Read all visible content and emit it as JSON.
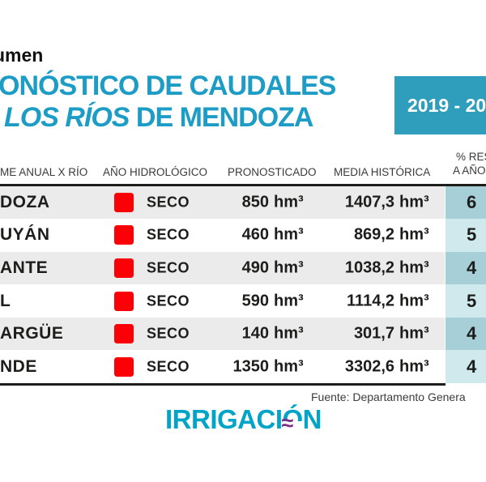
{
  "kicker": "umen",
  "title": {
    "line1": "ONÓSTICO DE CAUDALES",
    "line2_italic": "LOS RÍOS",
    "line2_rest": " DE MENDOZA",
    "color": "#1d9cc5"
  },
  "period_badge": {
    "label": "2019 - 20",
    "bg": "#2f9dbc"
  },
  "table": {
    "headers": {
      "col_river": "ME ANUAL X RÍO",
      "col_year": "AÑO HIDROLÓGICO",
      "col_forecast": "PRONOSTICADO",
      "col_historical": "MEDIA HISTÓRICA",
      "col_pct_line1": "% RES",
      "col_pct_line2": "A AÑO"
    },
    "unit": "hm³",
    "condition_swatch_color": "#fb0006",
    "row_alt_color": "#ebebeb",
    "pct_col_colors": {
      "dark": "#a7cfd8",
      "light": "#cfe9ed"
    },
    "rows": [
      {
        "name": "DOZA",
        "condition": "SECO",
        "forecast": "850",
        "historical": "1407,3",
        "pct": "6"
      },
      {
        "name": "UYÁN",
        "condition": "SECO",
        "forecast": "460",
        "historical": "869,2",
        "pct": "5"
      },
      {
        "name": "ANTE",
        "condition": "SECO",
        "forecast": "490",
        "historical": "1038,2",
        "pct": "4"
      },
      {
        "name": "L",
        "condition": "SECO",
        "forecast": "590",
        "historical": "1114,2",
        "pct": "5"
      },
      {
        "name": "ARGÜE",
        "condition": "SECO",
        "forecast": "140",
        "historical": "301,7",
        "pct": "4"
      },
      {
        "name": "NDE",
        "condition": "SECO",
        "forecast": "1350",
        "historical": "3302,6",
        "pct": "4"
      }
    ]
  },
  "footer": {
    "source": "Fuente: Departamento Genera"
  },
  "logo": {
    "part1": "IRRIGACI",
    "accented_o": "Ó",
    "part2": "N",
    "waves_glyph": "≈",
    "teal": "#00a4c7",
    "purple": "#7b2f88"
  }
}
